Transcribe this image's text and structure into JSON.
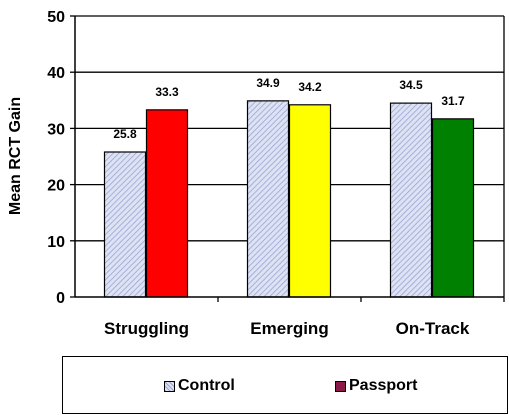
{
  "chart_data": {
    "type": "bar",
    "title": "",
    "xlabel": "",
    "ylabel": "Mean RCT Gain",
    "ylim": [
      0,
      50
    ],
    "yticks": [
      "0",
      "10",
      "20",
      "30",
      "40",
      "50"
    ],
    "grid": "horizontal",
    "legend_position": "bottom",
    "categories": [
      "Struggling",
      "Emerging",
      "On-Track"
    ],
    "series": [
      {
        "name": "Control",
        "values": [
          25.8,
          34.9,
          34.5
        ],
        "labels": [
          "25.8",
          "34.9",
          "34.5"
        ],
        "color": "#dde3f5",
        "pattern": "diagonal-hatch"
      },
      {
        "name": "Passport",
        "values": [
          33.3,
          34.2,
          31.7
        ],
        "labels": [
          "33.3",
          "34.2",
          "31.7"
        ],
        "color": "#8b1a4a",
        "bar_colors": [
          "#ff0000",
          "#ffff00",
          "#008000"
        ]
      }
    ]
  }
}
